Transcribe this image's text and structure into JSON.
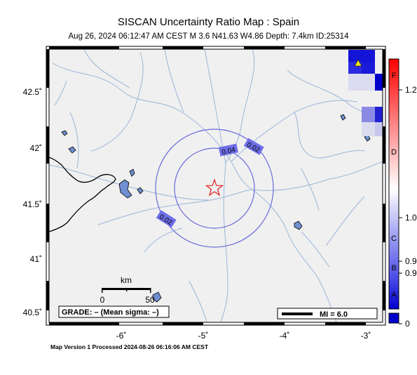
{
  "header": {
    "title": "SISCAN Uncertainty Ratio Map : Spain",
    "subtitle": "Aug 26, 2024 06:12:47 AM CEST   M 3.6   N41.63 W4.86   Depth: 7.4km   ID:25314"
  },
  "footer": {
    "text": "Map Version 1 Processed 2024-08-26 06:16:06 AM CEST"
  },
  "map": {
    "lon_range": [
      -6.9,
      -2.9
    ],
    "lat_range": [
      40.4,
      42.87
    ],
    "lon_ticks": [
      {
        "value": -6,
        "label": "-6˚"
      },
      {
        "value": -5,
        "label": "-5˚"
      },
      {
        "value": -4,
        "label": "-4˚"
      },
      {
        "value": -3,
        "label": "-3˚"
      }
    ],
    "lat_ticks": [
      {
        "value": 42.5,
        "label": "42.5˚"
      },
      {
        "value": 42,
        "label": "42˚"
      },
      {
        "value": 41.5,
        "label": "41.5˚"
      },
      {
        "value": 41,
        "label": "41˚"
      },
      {
        "value": 40.5,
        "label": "40.5˚"
      }
    ],
    "epicenter": {
      "lat": 41.63,
      "lon": -4.86
    },
    "contour_labels": [
      "0.04",
      "0.02",
      "0.02"
    ],
    "scale_bar": {
      "unit": "km",
      "labels": [
        "0",
        "50"
      ]
    },
    "grade_text": "GRADE: – (Mean sigma: –)",
    "mi_legend": "MI = 6.0"
  },
  "colorbar": {
    "letters": [
      "F",
      "D",
      "C",
      "B",
      "A"
    ],
    "values": [
      "1.2",
      "1.0",
      "0.9",
      "0.9",
      "0"
    ]
  },
  "colors": {
    "land": "#f0f0f0",
    "rivers": "#9ab6d8",
    "contours": "#6a6adc",
    "epicenter": "#e02020",
    "high": "#ff0000",
    "low": "#0000cc"
  }
}
